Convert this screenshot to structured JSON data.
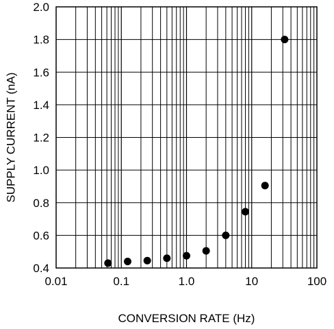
{
  "chart_data": {
    "type": "scatter",
    "title": "",
    "xlabel": "CONVERSION RATE (Hz)",
    "ylabel": "SUPPLY CURRENT (nA)",
    "xscale": "log",
    "xlim": [
      0.01,
      100
    ],
    "ylim": [
      0.4,
      2.0
    ],
    "grid": true,
    "x_tick_labels": [
      "0.01",
      "0.1",
      "1.0",
      "10",
      "100"
    ],
    "y_tick_labels": [
      "0.4",
      "0.6",
      "0.8",
      "1.0",
      "1.2",
      "1.4",
      "1.6",
      "1.8",
      "2.0"
    ],
    "series": [
      {
        "x": [
          0.0625,
          0.125,
          0.25,
          0.5,
          1,
          2,
          4,
          8,
          16,
          32
        ],
        "y": [
          0.43,
          0.44,
          0.445,
          0.46,
          0.475,
          0.505,
          0.6,
          0.745,
          0.905,
          1.8
        ],
        "color": "#000000"
      }
    ]
  }
}
